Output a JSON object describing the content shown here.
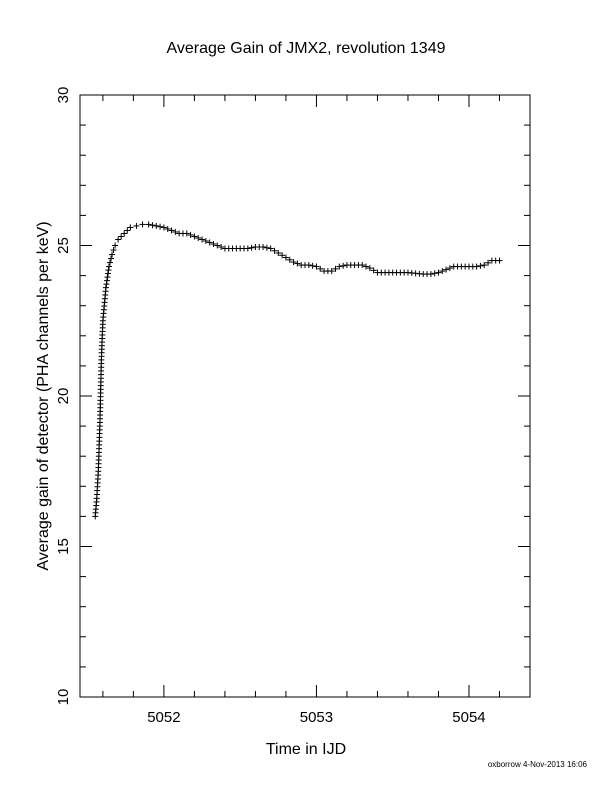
{
  "chart_data": {
    "type": "scatter",
    "title": "Average Gain of JMX2, revolution 1349",
    "xlabel": "Time in IJD",
    "ylabel": "Average gain of detector (PHA channels per keV)",
    "xlim": [
      5051.45,
      5054.4
    ],
    "ylim": [
      10,
      30
    ],
    "xticks": [
      "5052",
      "5053",
      "5054"
    ],
    "yticks": [
      "10",
      "15",
      "20",
      "25",
      "30"
    ],
    "grid": false,
    "marker": "plus",
    "color": "#000000",
    "series": [
      {
        "x": [
          5051.55,
          5051.56,
          5051.57,
          5051.58,
          5051.59,
          5051.6,
          5051.62,
          5051.64,
          5051.66,
          5051.68,
          5051.7,
          5051.74,
          5051.78,
          5051.82,
          5051.86,
          5051.9,
          5051.95,
          5052.0,
          5052.05,
          5052.1,
          5052.15,
          5052.2,
          5052.3,
          5052.4,
          5052.5,
          5052.55,
          5052.6,
          5052.65,
          5052.7,
          5052.75,
          5052.8,
          5052.85,
          5052.9,
          5052.95,
          5053.0,
          5053.05,
          5053.1,
          5053.15,
          5053.2,
          5053.25,
          5053.3,
          5053.35,
          5053.4,
          5053.45,
          5053.5,
          5053.6,
          5053.7,
          5053.75,
          5053.8,
          5053.85,
          5053.9,
          5053.95,
          5054.0,
          5054.05,
          5054.1,
          5054.15,
          5054.2
        ],
        "y": [
          16.0,
          16.6,
          17.5,
          19.0,
          21.2,
          22.5,
          23.6,
          24.3,
          24.7,
          25.0,
          25.2,
          25.4,
          25.6,
          25.65,
          25.7,
          25.7,
          25.65,
          25.6,
          25.5,
          25.4,
          25.4,
          25.3,
          25.1,
          24.9,
          24.9,
          24.9,
          24.95,
          24.95,
          24.9,
          24.75,
          24.6,
          24.45,
          24.35,
          24.35,
          24.3,
          24.15,
          24.15,
          24.3,
          24.35,
          24.35,
          24.35,
          24.25,
          24.1,
          24.1,
          24.1,
          24.1,
          24.05,
          24.05,
          24.1,
          24.2,
          24.3,
          24.3,
          24.3,
          24.3,
          24.35,
          24.5,
          24.5
        ]
      }
    ]
  },
  "footer": {
    "credit": "oxborrow 4-Nov-2013 16:06"
  }
}
